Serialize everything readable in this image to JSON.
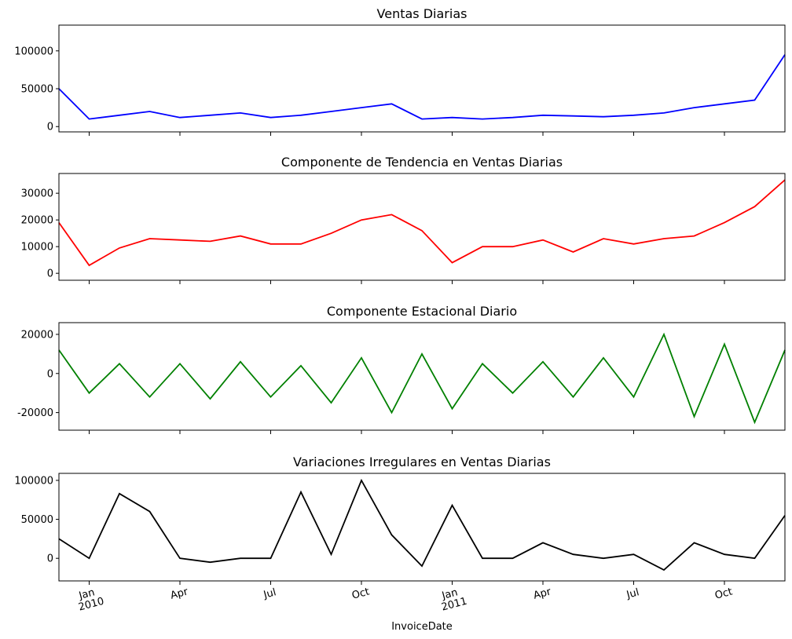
{
  "chart_data": [
    {
      "type": "line",
      "title": "Ventas Diarias",
      "color": "#0000ff",
      "values": [
        50000,
        10000,
        15000,
        20000,
        12000,
        15000,
        18000,
        12000,
        15000,
        20000,
        25000,
        30000,
        10000,
        12000,
        10000,
        12000,
        15000,
        14000,
        13000,
        15000,
        18000,
        25000,
        30000,
        35000,
        95000
      ],
      "ylim": [
        -7000,
        134000
      ],
      "yticks": [
        0,
        50000,
        100000
      ]
    },
    {
      "type": "line",
      "title": "Componente de Tendencia en Ventas Diarias",
      "color": "#ff0000",
      "values": [
        19000,
        3000,
        9500,
        13000,
        12500,
        12000,
        14000,
        11000,
        11000,
        15000,
        20000,
        22000,
        16000,
        4000,
        10000,
        10000,
        12500,
        8000,
        13000,
        11000,
        13000,
        14000,
        19000,
        25000,
        35000
      ],
      "ylim": [
        -2600,
        37400
      ],
      "yticks": [
        0,
        10000,
        20000,
        30000
      ]
    },
    {
      "type": "line",
      "title": "Componente Estacional Diario",
      "color": "#008000",
      "values": [
        12000,
        -10000,
        5000,
        -12000,
        5000,
        -13000,
        6000,
        -12000,
        4000,
        -15000,
        8000,
        -20000,
        10000,
        -18000,
        5000,
        -10000,
        6000,
        -12000,
        8000,
        -12000,
        20000,
        -22000,
        15000,
        -25000,
        12000
      ],
      "ylim": [
        -29000,
        26000
      ],
      "yticks": [
        -20000,
        0,
        20000
      ]
    },
    {
      "type": "line",
      "title": "Variaciones Irregulares en Ventas Diarias",
      "color": "#000000",
      "x": [
        "2009-12",
        "2010-01",
        "2010-02",
        "2010-03",
        "2010-04",
        "2010-05",
        "2010-06",
        "2010-07",
        "2010-08",
        "2010-09",
        "2010-10",
        "2010-11",
        "2010-12",
        "2011-01",
        "2011-02",
        "2011-03",
        "2011-04",
        "2011-05",
        "2011-06",
        "2011-07",
        "2011-08",
        "2011-09",
        "2011-10",
        "2011-11",
        "2011-12"
      ],
      "values": [
        25000,
        0,
        83000,
        60000,
        0,
        -5000,
        0,
        0,
        85000,
        5000,
        100000,
        30000,
        -10000,
        68000,
        0,
        0,
        20000,
        5000,
        0,
        5000,
        -15000,
        20000,
        5000,
        0,
        55000
      ],
      "ylim": [
        -29000,
        109000
      ],
      "yticks": [
        0,
        50000,
        100000
      ],
      "xlim": [
        "2009-12",
        "2011-12"
      ],
      "xticks": [
        {
          "value": "2010-01",
          "label": "Jan 2010"
        },
        {
          "value": "2010-04",
          "label": "Apr"
        },
        {
          "value": "2010-07",
          "label": "Jul"
        },
        {
          "value": "2010-10",
          "label": "Oct"
        },
        {
          "value": "2011-01",
          "label": "Jan 2011"
        },
        {
          "value": "2011-04",
          "label": "Apr"
        },
        {
          "value": "2011-07",
          "label": "Jul"
        },
        {
          "value": "2011-10",
          "label": "Oct"
        }
      ],
      "xlabel": "InvoiceDate"
    }
  ]
}
